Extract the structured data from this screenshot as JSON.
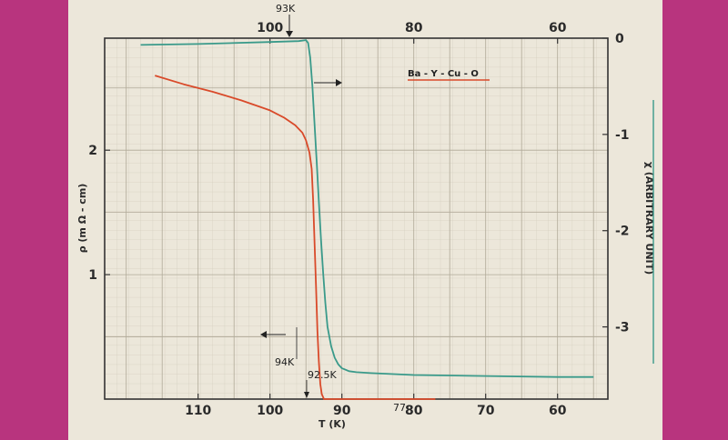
{
  "chart_data": {
    "type": "line",
    "title": "",
    "xlabel": "T (K)",
    "ylabel": "ρ (m Ω - cm)",
    "y2label": "χ (ARBITRARY UNIT)",
    "legend_label": "Ba - Y - Cu - O",
    "xlim": [
      53,
      123
    ],
    "ylim": [
      0,
      2.9
    ],
    "y2lim": [
      -3.75,
      0
    ],
    "bottom_ticks": [
      110,
      100,
      90,
      80,
      70,
      60
    ],
    "top_ticks": [
      100,
      80,
      60
    ],
    "left_ticks": [
      1,
      2
    ],
    "right_ticks": [
      0,
      -1,
      -2,
      -3
    ],
    "right_tick_labels": [
      "0",
      "-1",
      "-2",
      "-3"
    ],
    "bottom_extra_label": "77",
    "annotations": {
      "top_transition": "93K",
      "bottom_onset": "94K",
      "bottom_zero": "92.5K"
    },
    "series": [
      {
        "axis": "left",
        "color": "#d94a2a",
        "x": [
          116,
          112,
          108,
          104,
          100,
          98,
          96.5,
          95.5,
          95,
          94.5,
          94.2,
          94.0,
          93.8,
          93.6,
          93.4,
          93.2,
          93.0,
          92.8,
          92.5,
          90,
          85,
          80,
          77
        ],
        "y": [
          2.6,
          2.53,
          2.47,
          2.4,
          2.32,
          2.26,
          2.2,
          2.14,
          2.08,
          1.98,
          1.85,
          1.6,
          1.25,
          0.9,
          0.55,
          0.3,
          0.12,
          0.04,
          0.0,
          0.0,
          0.0,
          0.0,
          0.0
        ]
      },
      {
        "axis": "right",
        "color": "#3a9a8a",
        "x": [
          118,
          110,
          100,
          96,
          95,
          94.7,
          94.4,
          94.1,
          93.8,
          93.5,
          93.2,
          92.9,
          92.6,
          92.3,
          92.0,
          91.5,
          91,
          90.5,
          90,
          89,
          88,
          86,
          80,
          70,
          60,
          55
        ],
        "y": [
          -0.07,
          -0.06,
          -0.04,
          -0.03,
          -0.02,
          -0.05,
          -0.2,
          -0.5,
          -0.9,
          -1.3,
          -1.7,
          -2.1,
          -2.45,
          -2.75,
          -3.0,
          -3.2,
          -3.32,
          -3.39,
          -3.43,
          -3.46,
          -3.47,
          -3.48,
          -3.5,
          -3.51,
          -3.52,
          -3.52
        ]
      }
    ]
  }
}
